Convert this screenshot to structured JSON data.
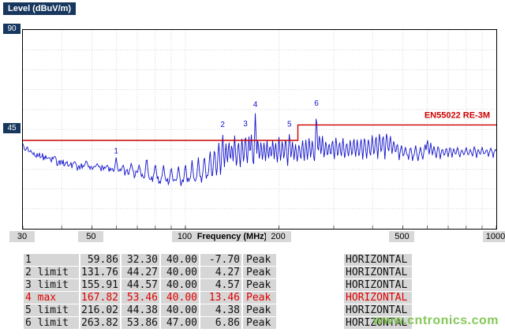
{
  "watermark": "www.cntronics.com",
  "chart_data": {
    "type": "line",
    "title": "",
    "xlabel": "Frequency (MHz)",
    "ylabel": "Level (dBuV/m)",
    "x_scale": "log",
    "x_range": [
      30,
      1000
    ],
    "y_range": [
      0,
      90
    ],
    "x_ticks": [
      30,
      50,
      100,
      200,
      500,
      1000
    ],
    "y_ticks": [
      90,
      45
    ],
    "x_grid": [
      40,
      50,
      60,
      70,
      80,
      90,
      100,
      200,
      300,
      400,
      500,
      600,
      700,
      800,
      900
    ],
    "y_grid_step": 9,
    "grid": true,
    "trace_color": "#1111cc",
    "limit_color": "#cc0000",
    "limit_label": "EN55022 RE-3M",
    "limit_segments": [
      {
        "from": 30,
        "to": 230,
        "level": 40
      },
      {
        "from": 230,
        "to": 1000,
        "level": 47
      }
    ],
    "markers": [
      {
        "n": "1",
        "freq": 59.86,
        "level": 32.3
      },
      {
        "n": "2",
        "freq": 131.76,
        "level": 44.27
      },
      {
        "n": "3",
        "freq": 155.91,
        "level": 44.57
      },
      {
        "n": "4",
        "freq": 167.82,
        "level": 53.46
      },
      {
        "n": "5",
        "freq": 216.02,
        "level": 44.38
      },
      {
        "n": "6",
        "freq": 263.82,
        "level": 53.86
      }
    ],
    "baseline": [
      [
        30,
        37
      ],
      [
        33,
        33.5
      ],
      [
        36,
        31.5
      ],
      [
        40,
        29.5
      ],
      [
        45,
        28
      ],
      [
        50,
        27.5
      ],
      [
        55,
        26.5
      ],
      [
        60,
        26
      ],
      [
        70,
        24.5
      ],
      [
        80,
        22.5
      ],
      [
        90,
        21.5
      ],
      [
        100,
        21
      ],
      [
        110,
        22
      ],
      [
        120,
        23.5
      ],
      [
        130,
        25
      ],
      [
        140,
        26.5
      ],
      [
        150,
        27
      ],
      [
        160,
        27.5
      ],
      [
        175,
        28
      ],
      [
        190,
        28.5
      ],
      [
        210,
        28.5
      ],
      [
        230,
        29
      ],
      [
        260,
        29.5
      ],
      [
        300,
        30.5
      ],
      [
        340,
        31
      ],
      [
        380,
        31.5
      ],
      [
        420,
        32
      ],
      [
        450,
        33
      ],
      [
        480,
        32.5
      ],
      [
        500,
        32
      ],
      [
        550,
        31.5
      ],
      [
        600,
        32
      ],
      [
        650,
        32
      ],
      [
        700,
        32
      ],
      [
        760,
        32.5
      ],
      [
        820,
        32.5
      ],
      [
        880,
        32.5
      ],
      [
        940,
        33
      ],
      [
        1000,
        33.5
      ]
    ],
    "peaks": [
      [
        38,
        33
      ],
      [
        44,
        30.5
      ],
      [
        48,
        31
      ],
      [
        52,
        29.5
      ],
      [
        56,
        29
      ],
      [
        59.86,
        32.3
      ],
      [
        63,
        29
      ],
      [
        67,
        30
      ],
      [
        71,
        29
      ],
      [
        75,
        33
      ],
      [
        80,
        30
      ],
      [
        85,
        29
      ],
      [
        90,
        28
      ],
      [
        95,
        28.5
      ],
      [
        100,
        30
      ],
      [
        105,
        31
      ],
      [
        110,
        32.5
      ],
      [
        115,
        34
      ],
      [
        120,
        36
      ],
      [
        124,
        37.5
      ],
      [
        128,
        40
      ],
      [
        131.76,
        44.27
      ],
      [
        135,
        39
      ],
      [
        138,
        41
      ],
      [
        141,
        39.5
      ],
      [
        144,
        42.5
      ],
      [
        148,
        41
      ],
      [
        152,
        42
      ],
      [
        155.91,
        44.57
      ],
      [
        160,
        42
      ],
      [
        163,
        43.5
      ],
      [
        167.82,
        53.46
      ],
      [
        171,
        42
      ],
      [
        175,
        40.5
      ],
      [
        179,
        39.5
      ],
      [
        183,
        40.5
      ],
      [
        187,
        39
      ],
      [
        191,
        41
      ],
      [
        195,
        40
      ],
      [
        200,
        42
      ],
      [
        205,
        41
      ],
      [
        210,
        42.5
      ],
      [
        216.02,
        44.38
      ],
      [
        221,
        40
      ],
      [
        226,
        38.5
      ],
      [
        232,
        39.5
      ],
      [
        238,
        41
      ],
      [
        244,
        40.5
      ],
      [
        250,
        42
      ],
      [
        256,
        41
      ],
      [
        263.82,
        53.86
      ],
      [
        270,
        44
      ],
      [
        276,
        42.5
      ],
      [
        283,
        41
      ],
      [
        290,
        40
      ],
      [
        297,
        41.5
      ],
      [
        305,
        42
      ],
      [
        313,
        40.5
      ],
      [
        321,
        41.5
      ],
      [
        330,
        40
      ],
      [
        339,
        41
      ],
      [
        348,
        42
      ],
      [
        357,
        40.5
      ],
      [
        367,
        41.5
      ],
      [
        377,
        42.5
      ],
      [
        388,
        41.5
      ],
      [
        399,
        42.5
      ],
      [
        410,
        43
      ],
      [
        421,
        44
      ],
      [
        432,
        43.5
      ],
      [
        444,
        44.5
      ],
      [
        456,
        42.5
      ],
      [
        468,
        40.5
      ],
      [
        480,
        39
      ],
      [
        495,
        38
      ],
      [
        510,
        37
      ],
      [
        530,
        37.5
      ],
      [
        550,
        38
      ],
      [
        570,
        37
      ],
      [
        590,
        38.5
      ],
      [
        600,
        41
      ],
      [
        615,
        39
      ],
      [
        630,
        37.5
      ],
      [
        650,
        38
      ],
      [
        670,
        36.5
      ],
      [
        690,
        37
      ],
      [
        710,
        37.5
      ],
      [
        730,
        36.5
      ],
      [
        750,
        37
      ],
      [
        775,
        36
      ],
      [
        800,
        37
      ],
      [
        825,
        36
      ],
      [
        850,
        37.5
      ],
      [
        875,
        36
      ],
      [
        900,
        37
      ],
      [
        930,
        36
      ],
      [
        960,
        36.5
      ],
      [
        995,
        36
      ]
    ]
  },
  "table": {
    "rows": [
      {
        "id": "1",
        "freq": "59.86",
        "level": "32.30",
        "limit": "40.00",
        "margin": "-7.70",
        "det": "Peak",
        "pol": "HORIZONTAL",
        "highlight": false
      },
      {
        "id": "2 limit",
        "freq": "131.76",
        "level": "44.27",
        "limit": "40.00",
        "margin": "4.27",
        "det": "Peak",
        "pol": "HORIZONTAL",
        "highlight": false
      },
      {
        "id": "3 limit",
        "freq": "155.91",
        "level": "44.57",
        "limit": "40.00",
        "margin": "4.57",
        "det": "Peak",
        "pol": "HORIZONTAL",
        "highlight": false
      },
      {
        "id": "4 max",
        "freq": "167.82",
        "level": "53.46",
        "limit": "40.00",
        "margin": "13.46",
        "det": "Peak",
        "pol": "HORIZONTAL",
        "highlight": true
      },
      {
        "id": "5 limit",
        "freq": "216.02",
        "level": "44.38",
        "limit": "40.00",
        "margin": "4.38",
        "det": "Peak",
        "pol": "HORIZONTAL",
        "highlight": false
      },
      {
        "id": "6 limit",
        "freq": "263.82",
        "level": "53.86",
        "limit": "47.00",
        "margin": "6.86",
        "det": "Peak",
        "pol": "HORIZONTAL",
        "highlight": false
      }
    ]
  }
}
